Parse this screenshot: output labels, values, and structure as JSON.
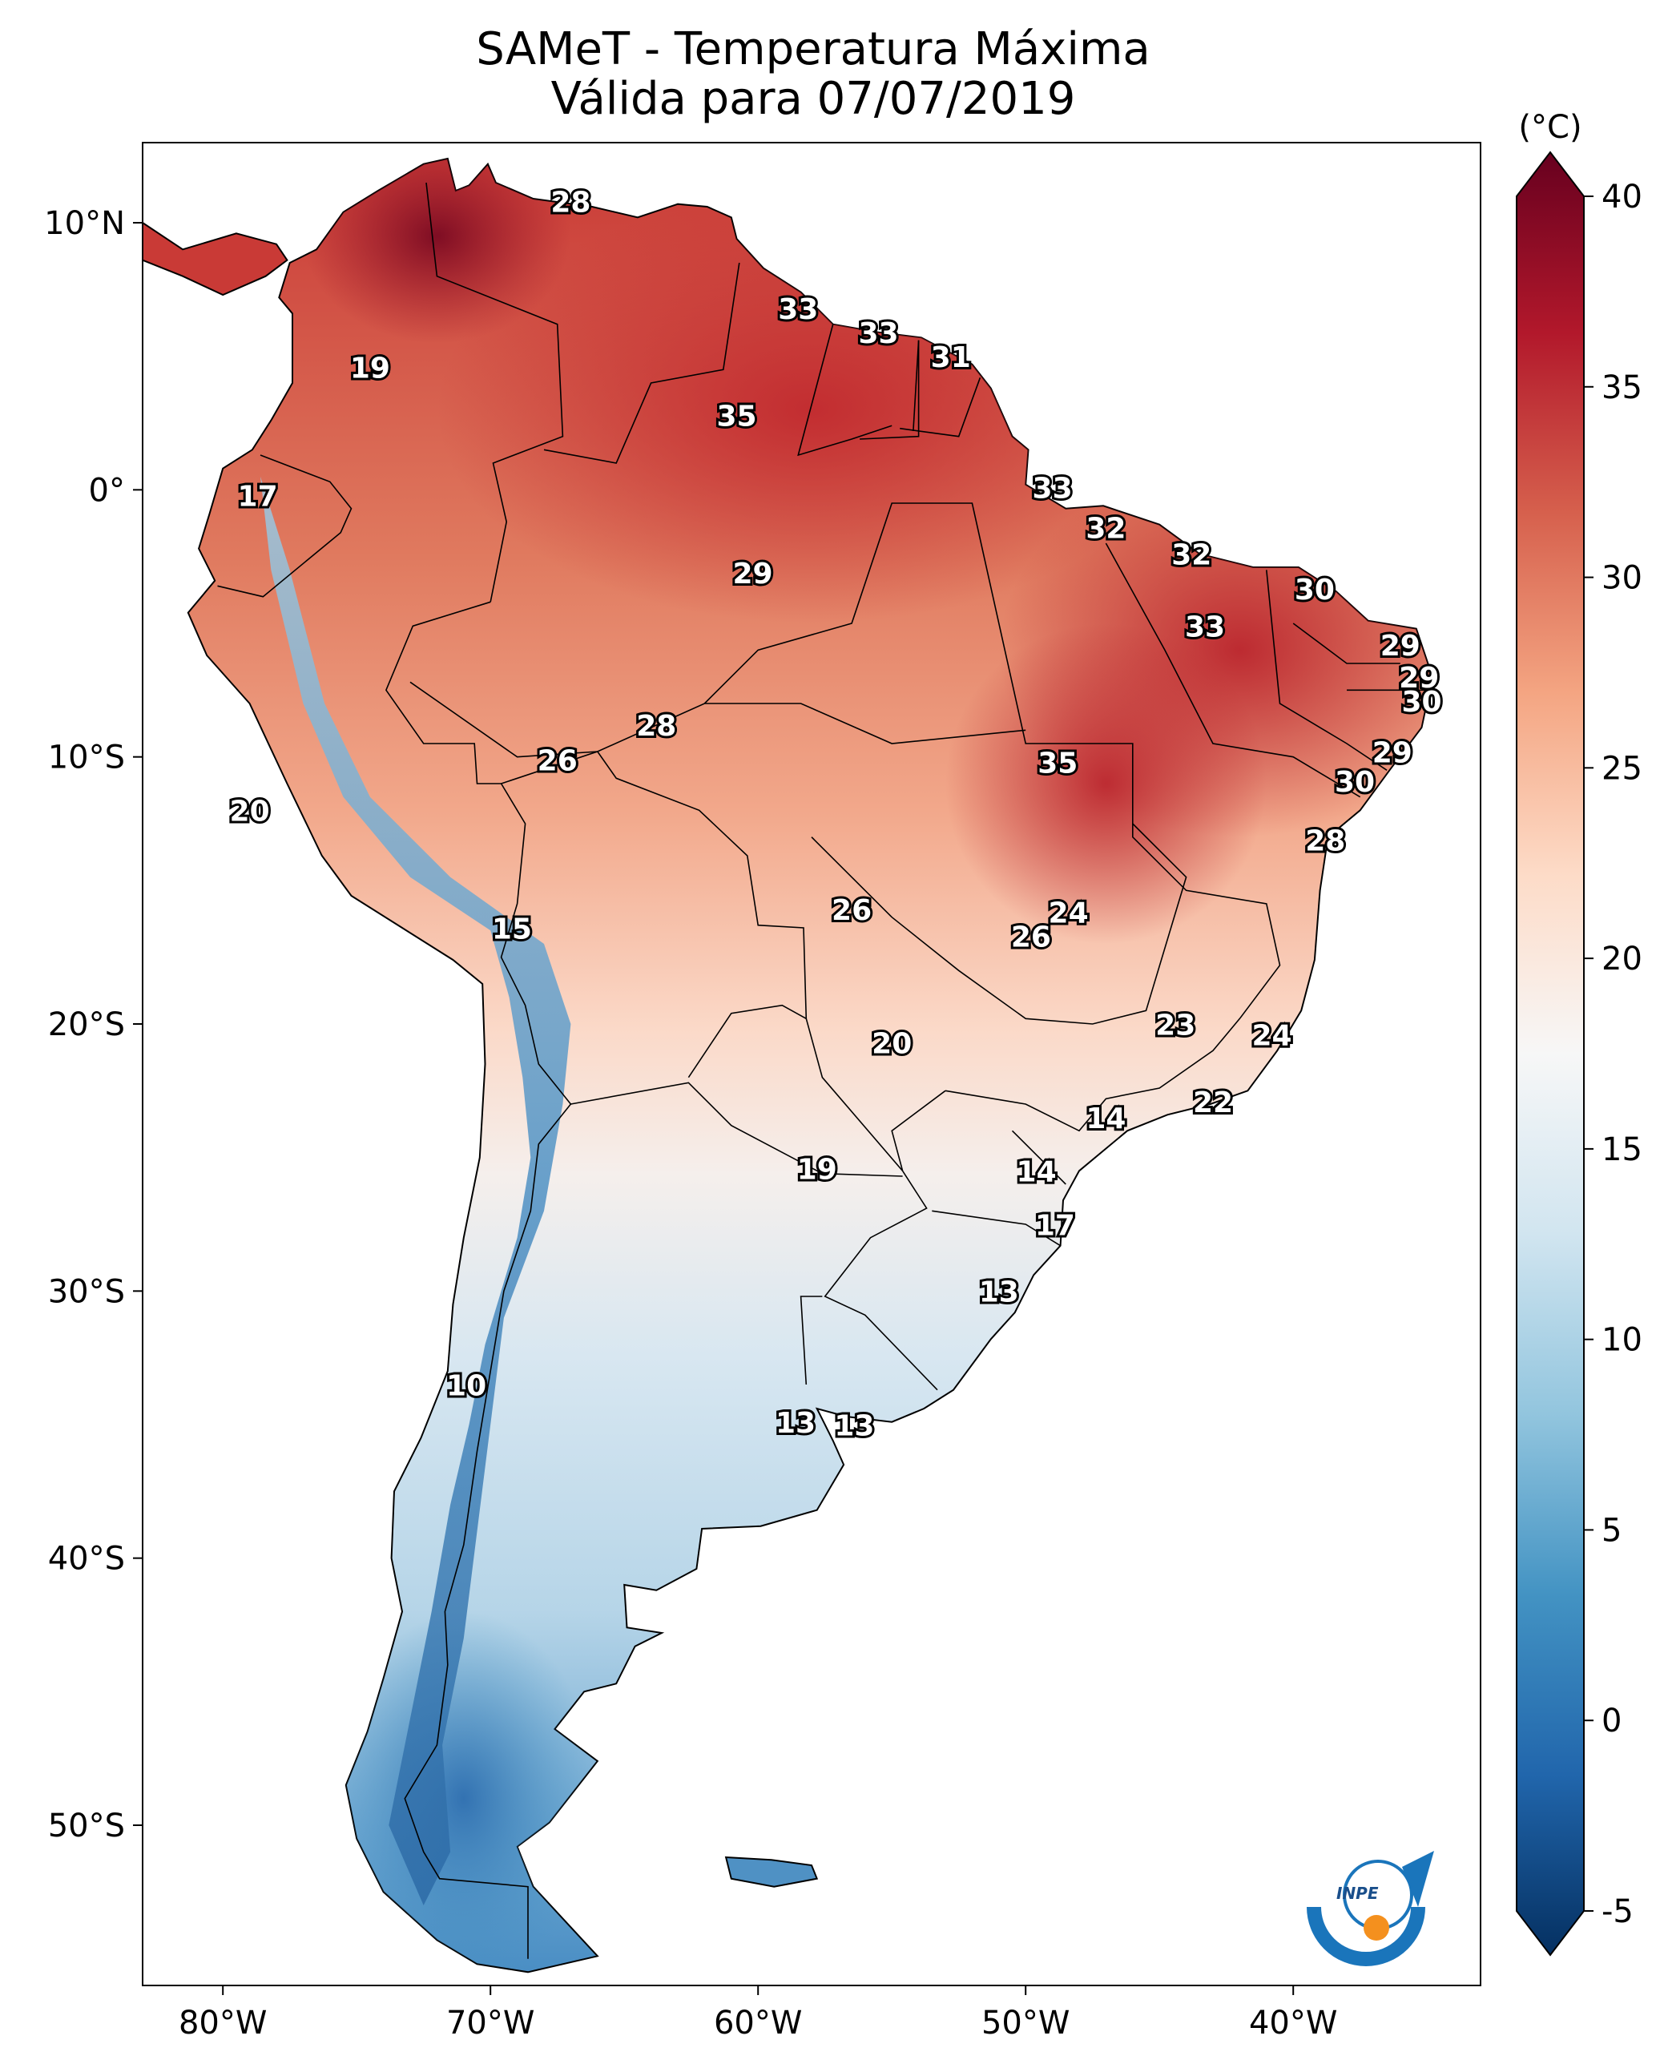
{
  "title": {
    "line1": "SAMeT - Temperatura Máxima",
    "line2": "Válida para 07/07/2019"
  },
  "colorbar": {
    "unit": "(°C)",
    "ticks": [
      "40",
      "35",
      "30",
      "25",
      "20",
      "15",
      "10",
      "5",
      "0",
      "-5"
    ],
    "range": [
      -5,
      40
    ],
    "colormap": [
      "#053061",
      "#2166ac",
      "#4393c3",
      "#92c5de",
      "#d1e5f0",
      "#f7f7f7",
      "#fddbc7",
      "#f4a582",
      "#d6604d",
      "#b2182b",
      "#67001f"
    ]
  },
  "axes": {
    "lon_labels": [
      "80°W",
      "70°W",
      "60°W",
      "50°W",
      "40°W"
    ],
    "lat_labels": [
      "10°N",
      "0°",
      "10°S",
      "20°S",
      "30°S",
      "40°S",
      "50°S"
    ],
    "lon_range": [
      -83,
      -33
    ],
    "lat_range": [
      -56,
      13
    ]
  },
  "labels": [
    {
      "text": "28",
      "lon": -67.0,
      "lat": 10.7
    },
    {
      "text": "19",
      "lon": -74.5,
      "lat": 4.5
    },
    {
      "text": "33",
      "lon": -58.5,
      "lat": 6.7
    },
    {
      "text": "33",
      "lon": -55.5,
      "lat": 5.8
    },
    {
      "text": "31",
      "lon": -52.8,
      "lat": 4.9
    },
    {
      "text": "35",
      "lon": -60.8,
      "lat": 2.7
    },
    {
      "text": "17",
      "lon": -78.7,
      "lat": -0.3
    },
    {
      "text": "33",
      "lon": -49.0,
      "lat": 0.0
    },
    {
      "text": "32",
      "lon": -47.0,
      "lat": -1.5
    },
    {
      "text": "32",
      "lon": -43.8,
      "lat": -2.5
    },
    {
      "text": "29",
      "lon": -60.2,
      "lat": -3.2
    },
    {
      "text": "30",
      "lon": -39.2,
      "lat": -3.8
    },
    {
      "text": "33",
      "lon": -43.3,
      "lat": -5.2
    },
    {
      "text": "29",
      "lon": -36.0,
      "lat": -5.9
    },
    {
      "text": "29",
      "lon": -35.3,
      "lat": -7.1
    },
    {
      "text": "30",
      "lon": -35.2,
      "lat": -8.0
    },
    {
      "text": "28",
      "lon": -63.8,
      "lat": -8.9
    },
    {
      "text": "26",
      "lon": -67.5,
      "lat": -10.2
    },
    {
      "text": "35",
      "lon": -48.8,
      "lat": -10.3
    },
    {
      "text": "29",
      "lon": -36.3,
      "lat": -9.9
    },
    {
      "text": "30",
      "lon": -37.7,
      "lat": -11.0
    },
    {
      "text": "20",
      "lon": -79.0,
      "lat": -12.1
    },
    {
      "text": "28",
      "lon": -38.8,
      "lat": -13.2
    },
    {
      "text": "26",
      "lon": -56.5,
      "lat": -15.8
    },
    {
      "text": "24",
      "lon": -48.4,
      "lat": -15.9
    },
    {
      "text": "26",
      "lon": -49.8,
      "lat": -16.8
    },
    {
      "text": "15",
      "lon": -69.2,
      "lat": -16.5
    },
    {
      "text": "20",
      "lon": -55.0,
      "lat": -20.8
    },
    {
      "text": "23",
      "lon": -44.4,
      "lat": -20.1
    },
    {
      "text": "24",
      "lon": -40.8,
      "lat": -20.5
    },
    {
      "text": "22",
      "lon": -43.0,
      "lat": -23.0
    },
    {
      "text": "14",
      "lon": -47.0,
      "lat": -23.6
    },
    {
      "text": "19",
      "lon": -57.8,
      "lat": -25.5
    },
    {
      "text": "14",
      "lon": -49.6,
      "lat": -25.6
    },
    {
      "text": "17",
      "lon": -48.9,
      "lat": -27.6
    },
    {
      "text": "13",
      "lon": -51.0,
      "lat": -30.1
    },
    {
      "text": "10",
      "lon": -70.9,
      "lat": -33.6
    },
    {
      "text": "13",
      "lon": -58.6,
      "lat": -35.0
    },
    {
      "text": "13",
      "lon": -56.4,
      "lat": -35.1
    }
  ],
  "logo": {
    "text": "INPE"
  }
}
